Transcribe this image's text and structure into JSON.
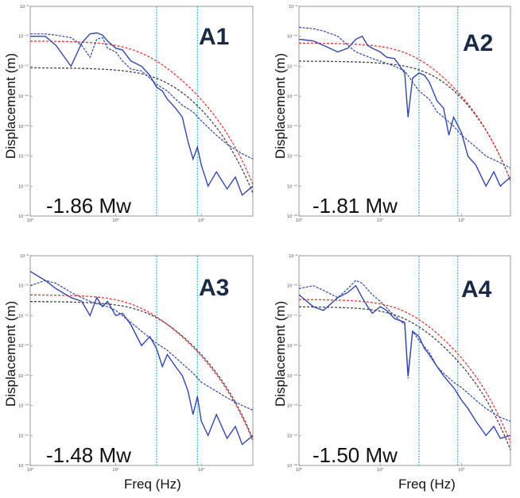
{
  "figure": {
    "xlabel": "Freq (Hz)",
    "ylabel": "Displacement (m)"
  },
  "colors": {
    "observed": "#3347a8",
    "model_red": "#e53935",
    "model_black": "#444444",
    "corner_line": "#29b6d8"
  },
  "chart_data": [
    {
      "type": "line",
      "id": "A1",
      "label": "A1",
      "magnitude_label": "-1.86 Mw",
      "x_scale": "log",
      "y_scale": "log",
      "xlim": [
        1,
        400
      ],
      "ylim_exp": [
        -16,
        -9
      ],
      "x_ticks": [
        "10⁰",
        "10¹",
        "10²"
      ],
      "y_ticks": [
        "10⁻⁹",
        "10⁻¹⁰",
        "10⁻¹¹",
        "10⁻¹²",
        "10⁻¹³",
        "10⁻¹⁴",
        "10⁻¹⁵",
        "10⁻¹⁶"
      ],
      "corner_freqs": [
        30,
        90
      ],
      "model_red": {
        "omega0": 7e-11,
        "fc": 20
      },
      "model_black": {
        "omega0": 9e-12,
        "fc": 40
      },
      "series": [
        {
          "name": "observed-solid",
          "style": "solid",
          "x": [
            1,
            1.5,
            2,
            3,
            4,
            5,
            6,
            7,
            8,
            10,
            12,
            15,
            20,
            25,
            30,
            35,
            40,
            50,
            60,
            70,
            80,
            90,
            100,
            120,
            150,
            200,
            250,
            300,
            400
          ],
          "y": [
            1e-10,
            1e-10,
            5e-11,
            1e-11,
            6e-11,
            1.2e-10,
            1.3e-10,
            1.1e-10,
            7e-11,
            4e-11,
            3.5e-11,
            1.5e-11,
            1e-11,
            5e-12,
            2e-12,
            1.5e-12,
            8e-13,
            4e-13,
            2e-13,
            3e-14,
            8e-15,
            2e-14,
            5e-15,
            1e-15,
            3e-15,
            8e-16,
            2e-15,
            5e-16,
            1e-15
          ]
        },
        {
          "name": "observed-dashed",
          "style": "dashed",
          "x": [
            1,
            1.5,
            2,
            3,
            4,
            5,
            6,
            7,
            8,
            10,
            12,
            15,
            20,
            25,
            30,
            40,
            50,
            60,
            80,
            100,
            150,
            200,
            300,
            400
          ],
          "y": [
            1.2e-10,
            1.2e-10,
            1.1e-10,
            9e-11,
            5e-11,
            2e-11,
            8e-11,
            9e-11,
            4e-11,
            3e-11,
            1.5e-11,
            8e-12,
            7e-12,
            4e-12,
            2.5e-12,
            1.5e-12,
            8e-13,
            5e-13,
            3e-13,
            1.5e-13,
            5e-14,
            2.5e-14,
            1.2e-14,
            8e-15
          ]
        }
      ]
    },
    {
      "type": "line",
      "id": "A2",
      "label": "A2",
      "magnitude_label": "-1.81 Mw",
      "x_scale": "log",
      "y_scale": "log",
      "xlim": [
        1,
        400
      ],
      "ylim_exp": [
        -16,
        -9
      ],
      "x_ticks": [
        "10⁰",
        "10¹",
        "10²"
      ],
      "y_ticks": [
        "10⁻⁹",
        "10⁻¹⁰",
        "10⁻¹¹",
        "10⁻¹²",
        "10⁻¹³",
        "10⁻¹⁴",
        "10⁻¹⁵",
        "10⁻¹⁶"
      ],
      "corner_freqs": [
        30,
        90
      ],
      "model_red": {
        "omega0": 6e-11,
        "fc": 25
      },
      "model_black": {
        "omega0": 1.5e-11,
        "fc": 50
      },
      "series": [
        {
          "name": "observed-solid",
          "style": "solid",
          "x": [
            1,
            1.5,
            2,
            3,
            4,
            5,
            6,
            7,
            8,
            10,
            12,
            15,
            20,
            22,
            25,
            30,
            35,
            40,
            50,
            60,
            70,
            80,
            100,
            120,
            150,
            200,
            250,
            300,
            400
          ],
          "y": [
            8e-11,
            7e-11,
            5e-11,
            3e-11,
            4e-11,
            8e-11,
            1e-10,
            5e-11,
            4e-11,
            3e-11,
            2e-11,
            1.8e-11,
            6e-12,
            2e-13,
            4e-12,
            6e-12,
            5e-12,
            3e-12,
            7e-13,
            4e-13,
            5e-14,
            2e-13,
            6e-14,
            1e-14,
            5e-15,
            1e-15,
            3e-15,
            1e-15,
            2e-15
          ]
        },
        {
          "name": "observed-dashed",
          "style": "dashed",
          "x": [
            1,
            1.5,
            2,
            3,
            4,
            5,
            6,
            8,
            10,
            15,
            20,
            25,
            30,
            40,
            50,
            60,
            80,
            100,
            150,
            200,
            300,
            400
          ],
          "y": [
            2e-10,
            1.8e-10,
            1.5e-10,
            1e-10,
            5e-11,
            3e-11,
            2.5e-11,
            1.8e-11,
            1.5e-11,
            1e-11,
            7e-12,
            3e-12,
            1.5e-12,
            8e-13,
            3e-13,
            2e-13,
            1e-13,
            5e-14,
            2e-14,
            1e-14,
            6e-15,
            4e-15
          ]
        }
      ]
    },
    {
      "type": "line",
      "id": "A3",
      "label": "A3",
      "magnitude_label": "-1.48 Mw",
      "x_scale": "log",
      "y_scale": "log",
      "xlim": [
        1,
        400
      ],
      "ylim_exp": [
        -16,
        -9
      ],
      "x_ticks": [
        "10⁰",
        "10¹",
        "10²"
      ],
      "y_ticks": [
        "10⁻⁹",
        "10⁻¹⁰",
        "10⁻¹¹",
        "10⁻¹²",
        "10⁻¹³",
        "10⁻¹⁴",
        "10⁻¹⁵",
        "10⁻¹⁶"
      ],
      "corner_freqs": [
        30,
        90
      ],
      "model_red": {
        "omega0": 5e-11,
        "fc": 18
      },
      "model_black": {
        "omega0": 3e-11,
        "fc": 25
      },
      "series": [
        {
          "name": "observed-solid",
          "style": "solid",
          "x": [
            1,
            1.5,
            2,
            3,
            4,
            5,
            6,
            7,
            8,
            10,
            12,
            15,
            20,
            25,
            30,
            35,
            40,
            50,
            60,
            70,
            80,
            90,
            100,
            120,
            150,
            200,
            250,
            300,
            400
          ],
          "y": [
            3e-10,
            1.5e-10,
            8e-11,
            4e-11,
            3e-11,
            1e-11,
            4e-11,
            2e-11,
            3e-11,
            1e-11,
            1.2e-11,
            5e-12,
            1e-12,
            2e-12,
            8e-13,
            2e-13,
            5e-13,
            2e-13,
            1e-13,
            3e-14,
            5e-15,
            2e-14,
            3e-15,
            1e-15,
            5e-15,
            8e-16,
            2e-15,
            5e-16,
            1e-15
          ]
        },
        {
          "name": "observed-dashed",
          "style": "dashed",
          "x": [
            1,
            1.5,
            2,
            3,
            4,
            5,
            6,
            8,
            10,
            15,
            20,
            30,
            40,
            50,
            60,
            80,
            100,
            150,
            200,
            300,
            400
          ],
          "y": [
            1e-10,
            1.5e-10,
            1.2e-10,
            6e-11,
            4e-11,
            3e-11,
            2.5e-11,
            2e-11,
            1.5e-11,
            6e-12,
            3e-12,
            1.2e-12,
            7e-13,
            4e-13,
            2.5e-13,
            1.2e-13,
            6e-14,
            3e-14,
            1.8e-14,
            1e-14,
            7e-15
          ]
        }
      ]
    },
    {
      "type": "line",
      "id": "A4",
      "label": "A4",
      "magnitude_label": "-1.50 Mw",
      "x_scale": "log",
      "y_scale": "log",
      "xlim": [
        1,
        400
      ],
      "ylim_exp": [
        -16,
        -9
      ],
      "x_ticks": [
        "10⁰",
        "10¹",
        "10²"
      ],
      "y_ticks": [
        "10⁻⁹",
        "10⁻¹⁰",
        "10⁻¹¹",
        "10⁻¹²",
        "10⁻¹³",
        "10⁻¹⁴",
        "10⁻¹⁵",
        "10⁻¹⁶"
      ],
      "corner_freqs": [
        30,
        90
      ],
      "model_red": {
        "omega0": 3.5e-11,
        "fc": 20
      },
      "model_black": {
        "omega0": 2e-11,
        "fc": 20
      },
      "series": [
        {
          "name": "observed-solid",
          "style": "solid",
          "x": [
            1,
            1.5,
            2,
            3,
            4,
            5,
            6,
            7,
            8,
            10,
            12,
            15,
            20,
            22,
            25,
            30,
            35,
            40,
            50,
            60,
            70,
            80,
            100,
            120,
            150,
            200,
            250,
            300,
            400
          ],
          "y": [
            5e-11,
            2e-11,
            1.5e-11,
            4e-11,
            6e-11,
            1e-10,
            4e-11,
            2e-11,
            1.2e-11,
            2e-11,
            1.5e-11,
            8e-12,
            6e-12,
            1e-13,
            3e-12,
            2e-12,
            8e-13,
            5e-13,
            2e-13,
            1e-13,
            6e-14,
            4e-14,
            1.5e-14,
            8e-15,
            3e-15,
            1e-15,
            2e-15,
            8e-16,
            1e-15
          ]
        },
        {
          "name": "observed-dashed",
          "style": "dashed",
          "x": [
            1,
            1.5,
            2,
            3,
            4,
            5,
            6,
            8,
            10,
            15,
            20,
            22,
            25,
            30,
            40,
            50,
            60,
            80,
            100,
            150,
            200,
            300,
            400
          ],
          "y": [
            8e-11,
            1e-10,
            7e-11,
            4e-11,
            8e-11,
            1.5e-10,
            1.2e-10,
            5e-11,
            3e-11,
            1e-11,
            5e-12,
            8e-14,
            3e-12,
            1.5e-12,
            6e-13,
            2e-13,
            1.2e-13,
            6e-14,
            4e-14,
            1.5e-14,
            8e-15,
            4e-15,
            3e-15
          ]
        }
      ]
    }
  ]
}
